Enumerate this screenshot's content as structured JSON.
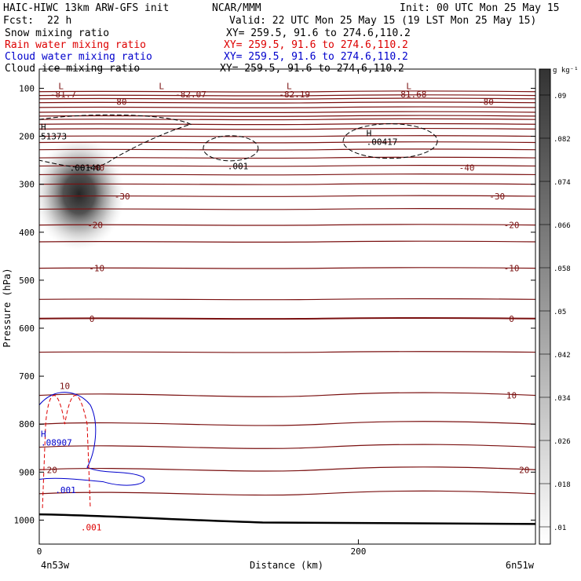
{
  "header": {
    "model": "HAIC-HIWC 13km ARW-GFS init",
    "org": "NCAR/MMM",
    "init": "Init: 00 UTC Mon 25 May 15",
    "fcst_label": "Fcst:",
    "fcst_value": "22 h",
    "valid": "Valid: 22 UTC Mon 25 May 15 (19 LST Mon 25 May 15)",
    "fields": [
      {
        "name": "Snow mixing ratio",
        "xy": "XY= 259.5, 91.6 to 274.6,110.2",
        "color": "#000000"
      },
      {
        "name": "Rain water mixing ratio",
        "xy": "XY= 259.5, 91.6 to 274.6,110.2",
        "color": "#dd0000"
      },
      {
        "name": "Cloud water mixing ratio",
        "xy": "XY= 259.5, 91.6 to 274.6,110.2",
        "color": "#0000cc"
      },
      {
        "name": "Cloud ice mixing ratio",
        "xy": "XY= 259.5, 91.6 to 274.6,110.2",
        "color": "#000000"
      }
    ]
  },
  "colors": {
    "temperature": "#7a1010",
    "rain": "#dd0000",
    "cloud_water": "#0000cc",
    "cloud_ice": "#000000",
    "terrain": "#000000"
  },
  "chart_data": {
    "type": "heatmap",
    "xlabel": "Distance (km)",
    "ylabel": "Pressure (hPa)",
    "xlim": [
      0,
      311
    ],
    "ylim": [
      1050,
      60
    ],
    "x_ticks": [
      0,
      200
    ],
    "y_ticks": [
      100,
      200,
      300,
      400,
      500,
      600,
      700,
      800,
      900,
      1000
    ],
    "x_endpoint_labels": [
      "4n53w",
      "6n51w"
    ],
    "colorbar": {
      "unit": "g kg⁻¹",
      "levels": [
        ".01",
        ".018",
        ".026",
        ".034",
        ".042",
        ".05",
        ".058",
        ".066",
        ".074",
        ".082",
        ".09"
      ]
    },
    "snow_max": {
      "x": 25,
      "p": 320,
      "value": 0.095
    },
    "temperature_labels": [
      {
        "text": "-81.7",
        "x": 15,
        "p": 112
      },
      {
        "text": "-80",
        "x": 50,
        "p": 128
      },
      {
        "text": "-82.07",
        "x": 95,
        "p": 112
      },
      {
        "text": "-82.19",
        "x": 160,
        "p": 112
      },
      {
        "text": "-81.68",
        "x": 233,
        "p": 112
      },
      {
        "text": "-80",
        "x": 280,
        "p": 128
      },
      {
        "text": "-40",
        "x": 268,
        "p": 265
      },
      {
        "text": "-40",
        "x": 36,
        "p": 265
      },
      {
        "text": "-30",
        "x": 52,
        "p": 325
      },
      {
        "text": "-30",
        "x": 287,
        "p": 325
      },
      {
        "text": "-20",
        "x": 35,
        "p": 385
      },
      {
        "text": "-20",
        "x": 296,
        "p": 385
      },
      {
        "text": "-10",
        "x": 36,
        "p": 475
      },
      {
        "text": "-10",
        "x": 296,
        "p": 475
      },
      {
        "text": "0",
        "x": 33,
        "p": 580
      },
      {
        "text": "0",
        "x": 296,
        "p": 580
      },
      {
        "text": "10",
        "x": 16,
        "p": 720
      },
      {
        "text": "10",
        "x": 296,
        "p": 740
      },
      {
        "text": "20",
        "x": 8,
        "p": 895
      },
      {
        "text": "20",
        "x": 304,
        "p": 895
      }
    ],
    "extrema_labels": [
      {
        "text": "L",
        "x": 12,
        "p": 95
      },
      {
        "text": "L",
        "x": 75,
        "p": 95
      },
      {
        "text": "L",
        "x": 155,
        "p": 95
      },
      {
        "text": "L",
        "x": 230,
        "p": 95
      },
      {
        "text": "H",
        "x": 1,
        "p": 180
      },
      {
        "text": "51373",
        "x": 1,
        "p": 200
      },
      {
        "text": ".00140",
        "x": 19,
        "p": 265
      },
      {
        "text": ".001",
        "x": 118,
        "p": 262
      },
      {
        "text": "H",
        "x": 205,
        "p": 193
      },
      {
        "text": ".00417",
        "x": 205,
        "p": 211
      }
    ],
    "cloud_labels": [
      {
        "text": "H",
        "x": 1,
        "p": 820
      },
      {
        "text": ".08907",
        "x": 1,
        "p": 838
      },
      {
        "text": ".001",
        "x": 10,
        "p": 937
      }
    ],
    "rain_labels": [
      {
        "text": ".001",
        "x": 26,
        "p": 1015
      }
    ]
  }
}
